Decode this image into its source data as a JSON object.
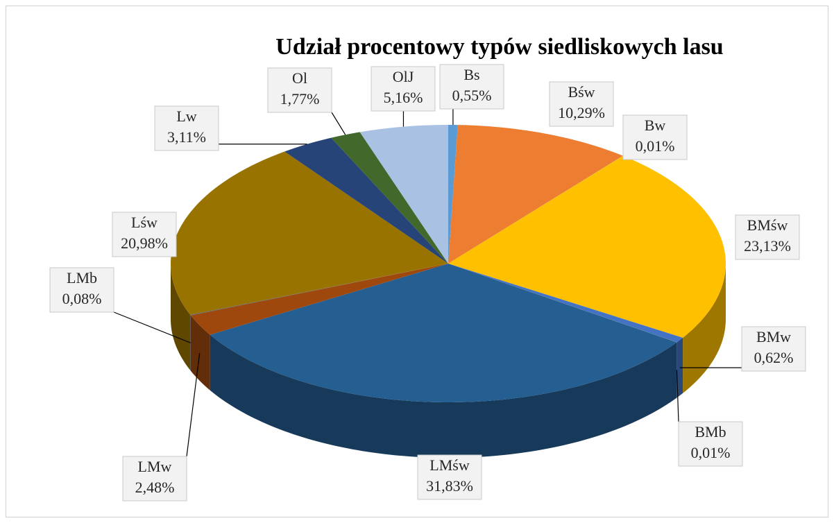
{
  "chart_data": {
    "type": "pie3d",
    "title": "Udział procentowy typów siedliskowych lasu",
    "categories": [
      "Bs",
      "Bśw",
      "Bw",
      "BMśw",
      "BMw",
      "BMb",
      "LMśw",
      "LMw",
      "LMb",
      "Lśw",
      "Lw",
      "Ol",
      "OlJ"
    ],
    "values": [
      0.55,
      10.29,
      0.01,
      23.13,
      0.62,
      0.01,
      31.83,
      2.48,
      0.08,
      20.98,
      3.11,
      1.77,
      5.16
    ],
    "value_labels": [
      "0,55%",
      "10,29%",
      "0,01%",
      "23,13%",
      "0,62%",
      "0,01%",
      "31,83%",
      "2,48%",
      "0,08%",
      "20,98%",
      "3,11%",
      "1,77%",
      "5,16%"
    ],
    "colors": [
      "#5b9bd5",
      "#ed7d31",
      "#a5a5a5",
      "#ffc000",
      "#4472c4",
      "#70ad47",
      "#255e91",
      "#9e480e",
      "#636363",
      "#997300",
      "#264478",
      "#43682b",
      "#a9c2e4"
    ]
  }
}
